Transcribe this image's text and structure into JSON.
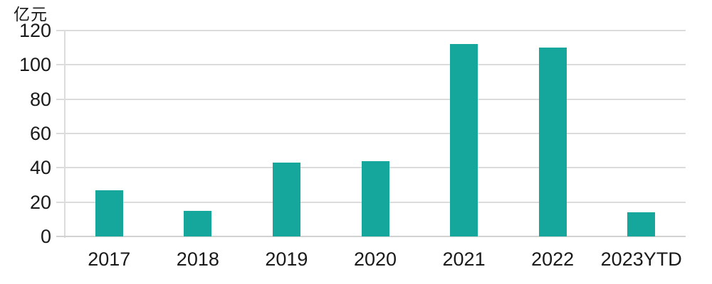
{
  "chart_data": {
    "type": "bar",
    "title": "",
    "ylabel": "亿元",
    "xlabel": "",
    "categories": [
      "2017",
      "2018",
      "2019",
      "2020",
      "2021",
      "2022",
      "2023YTD"
    ],
    "values": [
      27,
      15,
      43,
      44,
      112,
      110,
      14
    ],
    "ylim": [
      0,
      120
    ],
    "yticks": [
      0,
      20,
      40,
      60,
      80,
      100,
      120
    ],
    "grid": true,
    "legend": false,
    "colors": {
      "bar": "#15A79B",
      "gridline": "#DCDCDC",
      "axis_text": "#1A1A1A"
    }
  }
}
